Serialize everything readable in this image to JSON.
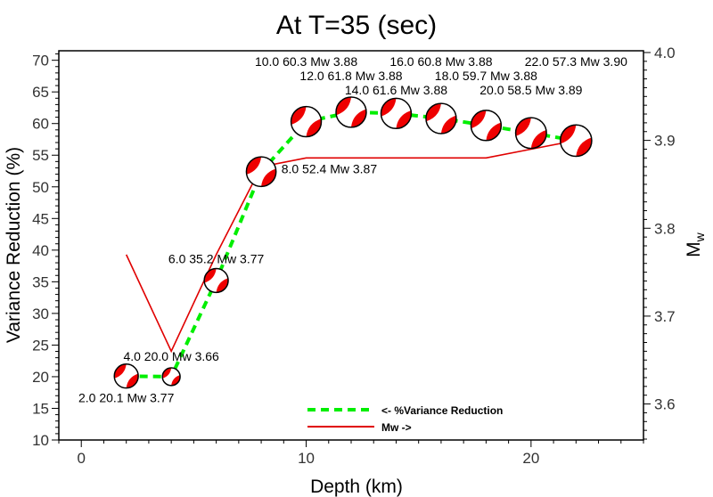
{
  "chart_data": {
    "type": "line",
    "title": "At T=35 (sec)",
    "xlabel": "Depth (km)",
    "ylabel": "Variance Reduction (%)",
    "y2label": "Mw",
    "xlim": [
      -1,
      25
    ],
    "ylim": [
      10,
      71.5
    ],
    "y2lim": [
      3.559,
      4.002
    ],
    "xticks": [
      0,
      10,
      20
    ],
    "yticks": [
      10,
      15,
      20,
      25,
      30,
      35,
      40,
      45,
      50,
      55,
      60,
      65,
      70
    ],
    "y2ticks": [
      3.6,
      3.7,
      3.8,
      3.9,
      4.0
    ],
    "y2tick_labels": [
      "3.6",
      "3.7",
      "3.8",
      "3.9",
      "4.0"
    ],
    "depth": [
      2,
      4,
      6,
      8,
      10,
      12,
      14,
      16,
      18,
      20,
      22
    ],
    "series": [
      {
        "name": "<- %Variance Reduction",
        "color": "#00ee00",
        "values": [
          20.1,
          20.0,
          35.2,
          52.4,
          60.3,
          61.8,
          61.6,
          60.8,
          59.7,
          58.5,
          57.3
        ]
      },
      {
        "name": "Mw ->",
        "color": "#e00000",
        "values": [
          3.77,
          3.66,
          3.77,
          3.87,
          3.88,
          3.88,
          3.88,
          3.88,
          3.88,
          3.89,
          3.9
        ]
      }
    ],
    "point_labels": [
      "2.0 20.1 Mw 3.77",
      "4.0 20.0 Mw 3.66",
      "6.0 35.2 Mw 3.77",
      "8.0 52.4 Mw 3.87",
      "10.0 60.3 Mw 3.88",
      "12.0 61.8 Mw 3.88",
      "14.0 61.6 Mw 3.88",
      "16.0 60.8 Mw 3.88",
      "18.0 59.7 Mw 3.88",
      "20.0 58.5 Mw 3.89",
      "22.0 57.3 Mw 3.90"
    ],
    "legend_position": "bottom-center",
    "grid": false
  }
}
